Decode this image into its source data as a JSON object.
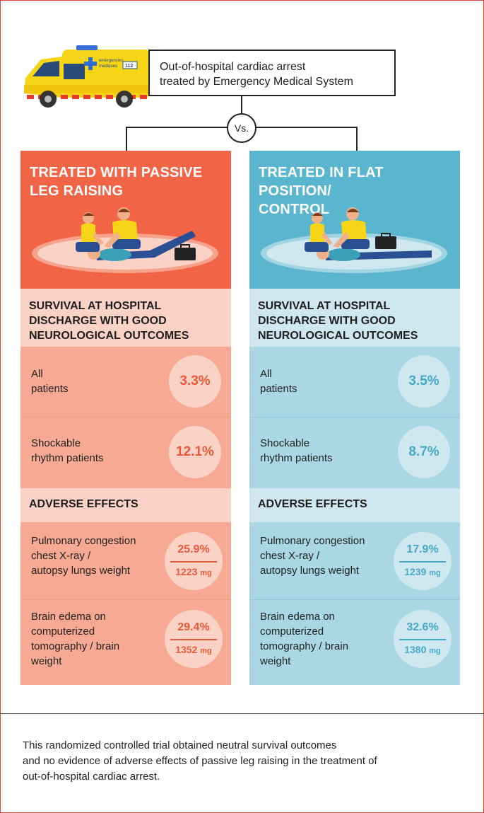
{
  "header": {
    "title_line1": "Out-of-hospital cardiac arrest",
    "title_line2": "treated by Emergency Medical System",
    "vs": "Vs.",
    "ambulance_text1": "emergencies",
    "ambulance_text2": "mèdiques",
    "ambulance_number": "112"
  },
  "colors": {
    "left_head": "#f26446",
    "left_light": "#fbd2c6",
    "left_mid": "#f7a994",
    "left_accent": "#e85a3a",
    "right_head": "#5ab6cf",
    "right_light": "#cfe7ee",
    "right_mid": "#a9d7e3",
    "right_accent": "#46a9c6"
  },
  "left": {
    "title_line1": "TREATED WITH PASSIVE",
    "title_line2": "LEG RAISING",
    "section_line1": "SURVIVAL AT HOSPITAL",
    "section_line2": "DISCHARGE WITH GOOD",
    "section_line3": "NEUROLOGICAL OUTCOMES",
    "all_label1": "All",
    "all_label2": "patients",
    "all_value": "3.3%",
    "shock_label1": "Shockable",
    "shock_label2": "rhythm patients",
    "shock_value": "12.1%",
    "adverse_title": "ADVERSE EFFECTS",
    "pulm_label1": "Pulmonary congestion",
    "pulm_label2": "chest X-ray /",
    "pulm_label3": "autopsy lungs weight",
    "pulm_value": "25.9%",
    "pulm_weight": "1223",
    "brain_label1": "Brain edema on",
    "brain_label2": "computerized",
    "brain_label3": "tomography / brain",
    "brain_label4": "weight",
    "brain_value": "29.4%",
    "brain_weight": "1352",
    "unit": "mg"
  },
  "right": {
    "title_line1": "TREATED IN FLAT POSITION/",
    "title_line2": "CONTROL",
    "section_line1": "SURVIVAL AT HOSPITAL",
    "section_line2": "DISCHARGE WITH GOOD",
    "section_line3": "NEUROLOGICAL OUTCOMES",
    "all_label1": "All",
    "all_label2": "patients",
    "all_value": "3.5%",
    "shock_label1": "Shockable",
    "shock_label2": "rhythm patients",
    "shock_value": "8.7%",
    "adverse_title": "ADVERSE EFFECTS",
    "pulm_label1": "Pulmonary congestion",
    "pulm_label2": "chest X-ray /",
    "pulm_label3": "autopsy lungs weight",
    "pulm_value": "17.9%",
    "pulm_weight": "1239",
    "brain_label1": "Brain edema on",
    "brain_label2": "computerized",
    "brain_label3": "tomography / brain",
    "brain_label4": "weight",
    "brain_value": "32.6%",
    "brain_weight": "1380",
    "unit": "mg"
  },
  "footer": {
    "line1": "This randomized controlled trial obtained neutral survival outcomes",
    "line2": "and no evidence of adverse effects of passive leg raising in the treatment of",
    "line3": "out-of-hospital cardiac arrest."
  }
}
